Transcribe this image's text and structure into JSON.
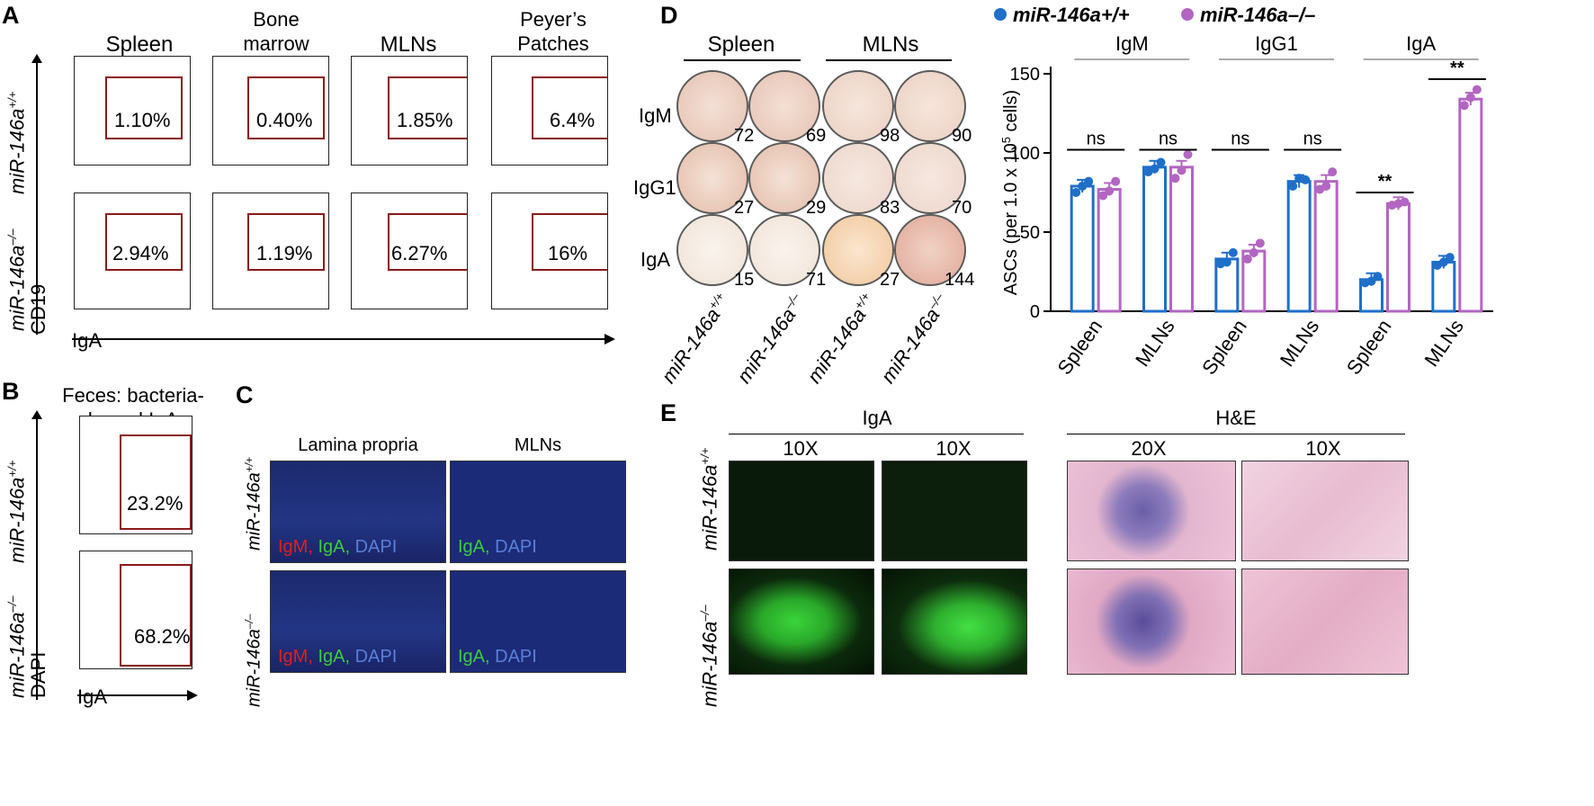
{
  "panel_letters": {
    "A": "A",
    "B": "B",
    "C": "C",
    "D": "D",
    "E": "E"
  },
  "panelA": {
    "columns": [
      "Spleen",
      "Bone\nmarrow",
      "MLNs",
      "Peyer’s\nPatches"
    ],
    "rows": [
      "miR-146a+/+",
      "miR-146a–/–"
    ],
    "row_labels": {
      "wt_main": "miR-146a",
      "wt_sup": "+/+",
      "ko_main": "miR-146a",
      "ko_sup": "–/–"
    },
    "ylabel": "CD19",
    "xlabel": "IgA",
    "percentages": [
      [
        "1.10%",
        "0.40%",
        "1.85%",
        "6.4%"
      ],
      [
        "2.94%",
        "1.19%",
        "6.27%",
        "16%"
      ]
    ]
  },
  "axis_ticks": {
    "base": "10",
    "exps": [
      "0",
      "1",
      "2",
      "3",
      "4",
      "5"
    ]
  },
  "panelB": {
    "title_line1": "Feces: bacteria-",
    "title_line2": "bound IgA",
    "ylabel": "DAPI",
    "xlabel": "IgA",
    "percentages": [
      "23.2%",
      "68.2%"
    ]
  },
  "panelC": {
    "col1": "Lamina propria",
    "col2": "MLNs",
    "stain_lp": {
      "igm": "IgM,",
      "iga": "IgA,",
      "dapi": "DAPI"
    },
    "stain_mln": {
      "iga": "IgA,",
      "dapi": "DAPI"
    }
  },
  "panelD_plates": {
    "group1": "Spleen",
    "group2": "MLNs",
    "row_labels": [
      "IgM",
      "IgG1",
      "IgA"
    ],
    "counts": [
      [
        "72",
        "69",
        "98",
        "90"
      ],
      [
        "27",
        "29",
        "83",
        "70"
      ],
      [
        "15",
        "71",
        "27",
        "144"
      ]
    ],
    "col_genotypes": [
      {
        "main": "miR-146a",
        "sup": "+/+"
      },
      {
        "main": "miR-146a",
        "sup": "–/–"
      },
      {
        "main": "miR-146a",
        "sup": "+/+"
      },
      {
        "main": "miR-146a",
        "sup": "–/–"
      }
    ]
  },
  "chart_data": {
    "type": "bar",
    "legend": [
      {
        "name": "miR-146a+/+",
        "color": "#1f6fc9"
      },
      {
        "name": "miR-146a–/–",
        "color": "#b266c2"
      }
    ],
    "legend_placement": "top",
    "group_headers": [
      "IgM",
      "IgG1",
      "IgA"
    ],
    "categories": [
      "Spleen",
      "MLNs",
      "Spleen",
      "MLNs",
      "Spleen",
      "MLNs"
    ],
    "ylabel": "ASCs (per 1.0 x 10",
    "ylabel_sup": "5",
    "ylabel_tail": " cells)",
    "ylim": [
      0,
      150
    ],
    "yticks": [
      0,
      50,
      100,
      150
    ],
    "series": [
      {
        "name": "miR-146a+/+",
        "color": "#1f6fc9",
        "values": [
          79,
          91,
          33,
          82,
          20,
          31
        ],
        "points": [
          [
            75,
            79,
            82
          ],
          [
            88,
            90,
            94
          ],
          [
            30,
            31,
            37
          ],
          [
            79,
            84,
            83
          ],
          [
            18,
            19,
            22
          ],
          [
            29,
            31,
            34
          ]
        ]
      },
      {
        "name": "miR-146a–/–",
        "color": "#b266c2",
        "values": [
          77,
          91,
          38,
          82,
          68,
          134
        ],
        "points": [
          [
            73,
            76,
            82
          ],
          [
            84,
            89,
            99
          ],
          [
            33,
            37,
            43
          ],
          [
            77,
            79,
            88
          ],
          [
            67,
            68,
            69
          ],
          [
            130,
            135,
            140
          ]
        ]
      }
    ],
    "significance": [
      "ns",
      "ns",
      "ns",
      "ns",
      "**",
      "**"
    ]
  },
  "panelE": {
    "group1": "IgA",
    "group2": "H&E",
    "mags": [
      "10X",
      "10X",
      "20X",
      "10X"
    ]
  },
  "colors": {
    "gate": "#8b1a1a",
    "wt": "#1f6fc9",
    "ko": "#b266c2"
  }
}
